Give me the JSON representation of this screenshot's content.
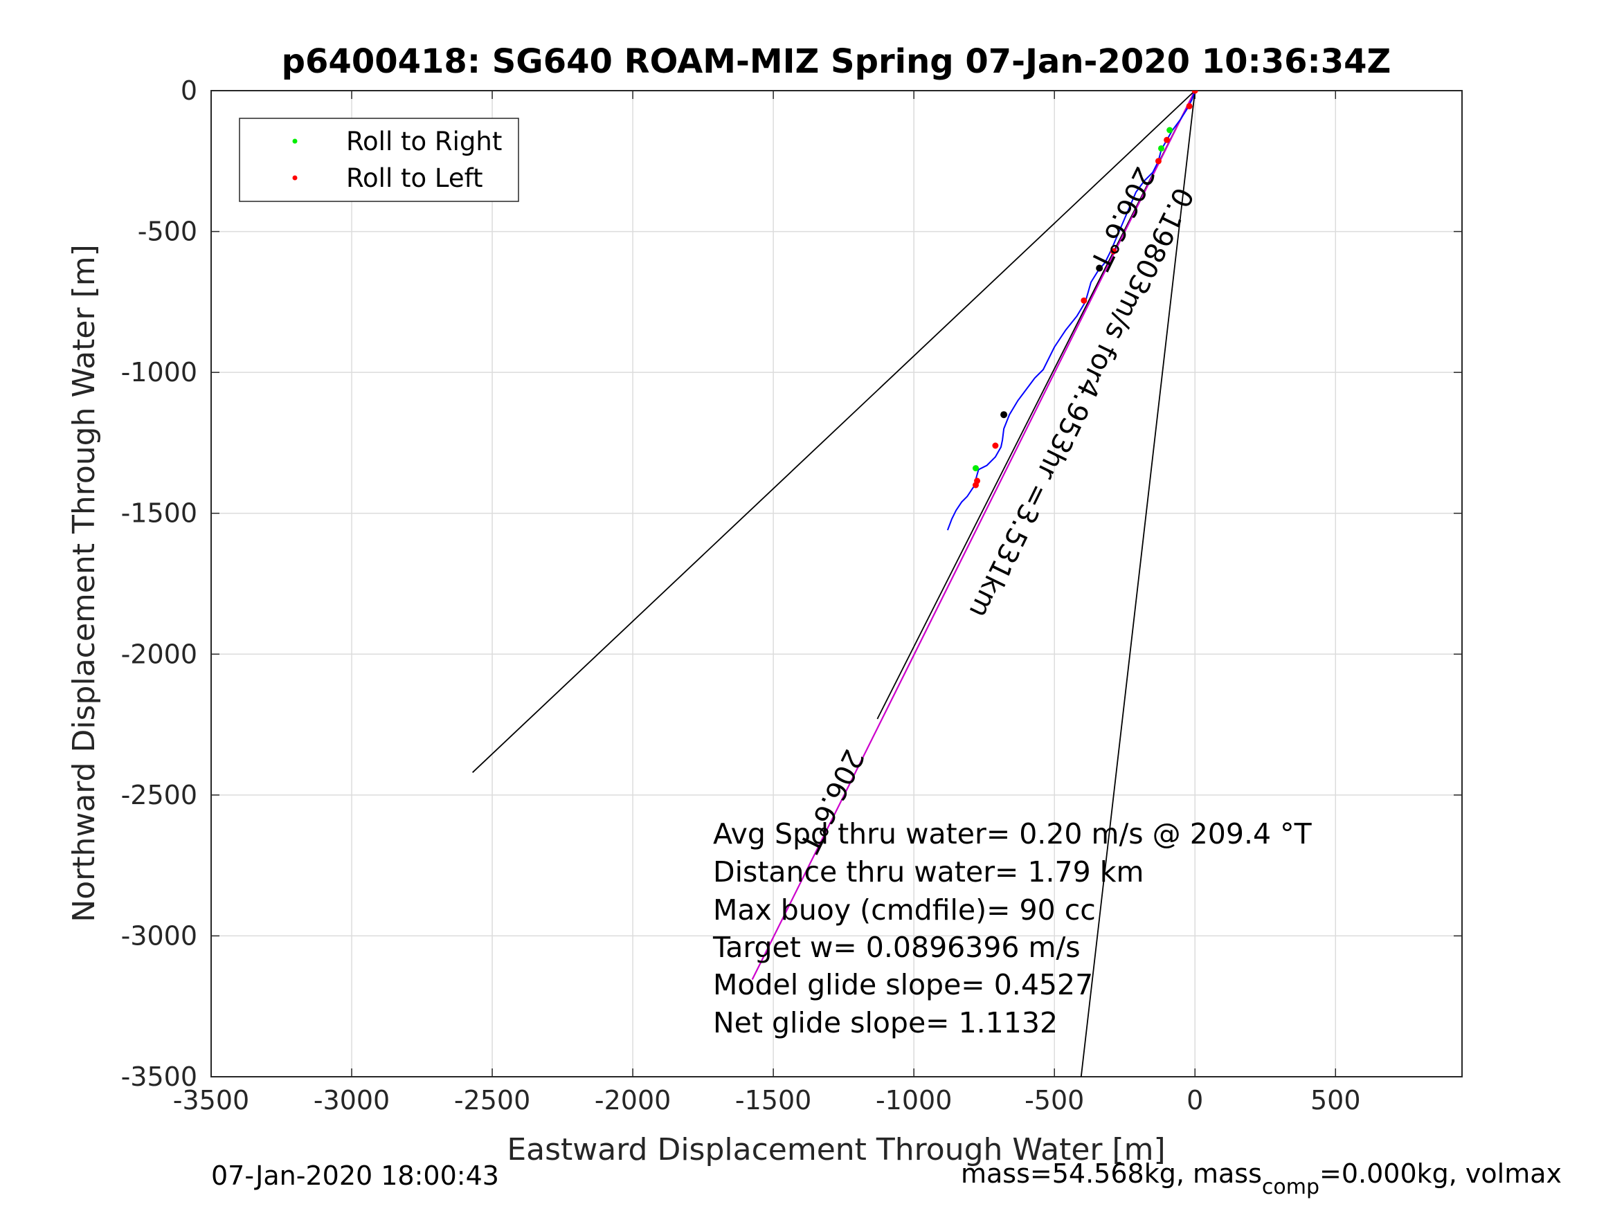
{
  "chart_data": {
    "type": "line",
    "title": "p6400418: SG640 ROAM-MIZ Spring 07-Jan-2020 10:36:34Z",
    "xlabel": "Eastward Displacement Through Water [m]",
    "ylabel": "Northward Displacement Through Water [m]",
    "xlim": [
      -3500,
      950
    ],
    "ylim": [
      -3500,
      0
    ],
    "xticks": [
      -3500,
      -3000,
      -2500,
      -2000,
      -1500,
      -1000,
      -500,
      0,
      500
    ],
    "yticks": [
      0,
      -500,
      -1000,
      -1500,
      -2000,
      -2500,
      -3000,
      -3500
    ],
    "grid": true,
    "legend": {
      "placement": "top-left",
      "entries": [
        {
          "label": "Roll to Right",
          "color": "#00ee00"
        },
        {
          "label": "Roll to Left",
          "color": "#ff0000"
        }
      ]
    },
    "lines": [
      {
        "id": "heading-left",
        "color": "#000000",
        "x": [
          0,
          -2570
        ],
        "y": [
          0,
          -2420
        ]
      },
      {
        "id": "heading-right",
        "color": "#000000",
        "x": [
          0,
          -405
        ],
        "y": [
          0,
          -3500
        ]
      },
      {
        "id": "heading-center",
        "color": "#000000",
        "x": [
          0,
          -1130
        ],
        "y": [
          0,
          -2230
        ]
      },
      {
        "id": "current-vector",
        "color": "#cc00cc",
        "x": [
          0,
          -1575
        ],
        "y": [
          0,
          -3155
        ]
      }
    ],
    "track": {
      "color": "#0000ff",
      "x": [
        0,
        -10,
        -25,
        -50,
        -80,
        -100,
        -120,
        -130,
        -150,
        -180,
        -210,
        -240,
        -270,
        -300,
        -320,
        -345,
        -370,
        -390,
        -420,
        -460,
        -500,
        -540,
        -570,
        -600,
        -630,
        -660,
        -680,
        -685,
        -690,
        -710,
        -740,
        -770,
        -780,
        -778,
        -790,
        -810,
        -830,
        -850,
        -865,
        -880
      ],
      "y": [
        0,
        -30,
        -60,
        -100,
        -140,
        -175,
        -210,
        -250,
        -290,
        -320,
        -360,
        -430,
        -500,
        -570,
        -610,
        -640,
        -680,
        -750,
        -800,
        -850,
        -910,
        -990,
        -1020,
        -1060,
        -1100,
        -1150,
        -1200,
        -1240,
        -1265,
        -1300,
        -1330,
        -1345,
        -1380,
        -1395,
        -1410,
        -1440,
        -1460,
        -1490,
        -1520,
        -1560
      ]
    },
    "markers": {
      "roll_right": {
        "color": "#00ee00",
        "x": [
          -90,
          -120,
          -780
        ],
        "y": [
          -140,
          -205,
          -1340
        ]
      },
      "roll_left": {
        "color": "#ff0000",
        "x": [
          0,
          -20,
          -100,
          -130,
          -290,
          -395,
          -710,
          -775,
          -780
        ],
        "y": [
          0,
          -55,
          -175,
          -250,
          -570,
          -745,
          -1260,
          -1385,
          -1400
        ]
      },
      "waypoints": {
        "color": "#000000",
        "x": [
          -340,
          -680
        ],
        "y": [
          -630,
          -1150
        ]
      }
    },
    "annotations": [
      "Avg Spd thru water=  0.20 m/s @ 209.4 °T",
      "Distance thru water=  1.79 km",
      "Max buoy (cmdfile)= 90 cc",
      "Target w= 0.0896396 m/s",
      "Model glide slope= 0.4527",
      "Net glide slope= 1.1132"
    ],
    "rotated_labels": {
      "heading_short": "206.6°T",
      "current": "0.19803m/s for4.953hr =3.531km",
      "heading_long": "206.6°T"
    }
  },
  "footer": {
    "timestamp": "07-Jan-2020 18:00:43",
    "mass_prefix": "mass=54.568kg, mass",
    "mass_sub": "comp",
    "mass_suffix": "=0.000kg, volmax"
  }
}
